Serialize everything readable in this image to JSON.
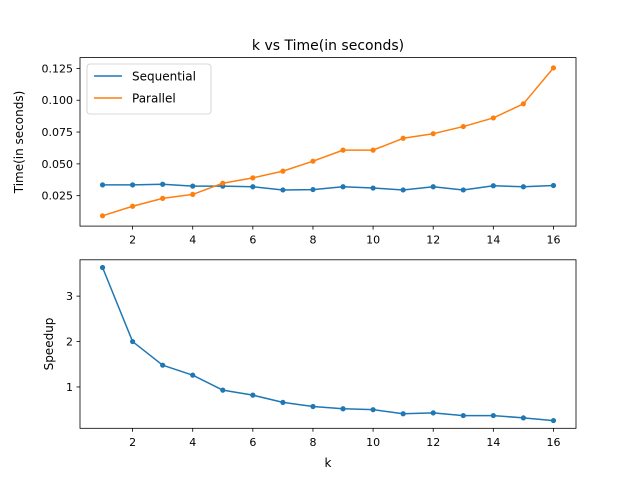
{
  "chart_data": [
    {
      "type": "line",
      "title": "k vs Time(in seconds)",
      "xlabel": "",
      "ylabel": "Time(in seconds)",
      "x": [
        1,
        2,
        3,
        4,
        5,
        6,
        7,
        8,
        9,
        10,
        11,
        12,
        13,
        14,
        15,
        16
      ],
      "series": [
        {
          "name": "Sequential",
          "color": "#1f77b4",
          "values": [
            0.0335,
            0.0335,
            0.034,
            0.0325,
            0.0325,
            0.032,
            0.0295,
            0.0298,
            0.032,
            0.031,
            0.0295,
            0.032,
            0.0295,
            0.0328,
            0.032,
            0.033
          ]
        },
        {
          "name": "Parallel",
          "color": "#ff7f0e",
          "values": [
            0.0092,
            0.0167,
            0.0229,
            0.026,
            0.0348,
            0.039,
            0.0443,
            0.0521,
            0.0608,
            0.0608,
            0.0701,
            0.0737,
            0.0793,
            0.0861,
            0.0972,
            0.1254
          ]
        }
      ],
      "xlim": [
        0.25,
        16.75
      ],
      "ylim": [
        0.0011,
        0.1335
      ],
      "xticks": [
        2,
        4,
        6,
        8,
        10,
        12,
        14,
        16
      ],
      "yticks": [
        0.025,
        0.05,
        0.075,
        0.1,
        0.125
      ],
      "ytick_labels": [
        "0.025",
        "0.050",
        "0.075",
        "0.100",
        "0.125"
      ],
      "legend": "upper-left",
      "grid": false
    },
    {
      "type": "line",
      "title": "",
      "xlabel": "k",
      "ylabel": "Speedup",
      "x": [
        1,
        2,
        3,
        4,
        5,
        6,
        7,
        8,
        9,
        10,
        11,
        12,
        13,
        14,
        15,
        16
      ],
      "series": [
        {
          "color": "#1f77b4",
          "values": [
            3.63,
            2.0,
            1.48,
            1.26,
            0.93,
            0.82,
            0.66,
            0.57,
            0.52,
            0.5,
            0.41,
            0.43,
            0.37,
            0.37,
            0.32,
            0.26
          ]
        }
      ],
      "xlim": [
        0.25,
        16.75
      ],
      "ylim": [
        0.09,
        3.8
      ],
      "xticks": [
        2,
        4,
        6,
        8,
        10,
        12,
        14,
        16
      ],
      "yticks": [
        1,
        2,
        3
      ],
      "ytick_labels": [
        "1",
        "2",
        "3"
      ],
      "grid": false
    }
  ]
}
